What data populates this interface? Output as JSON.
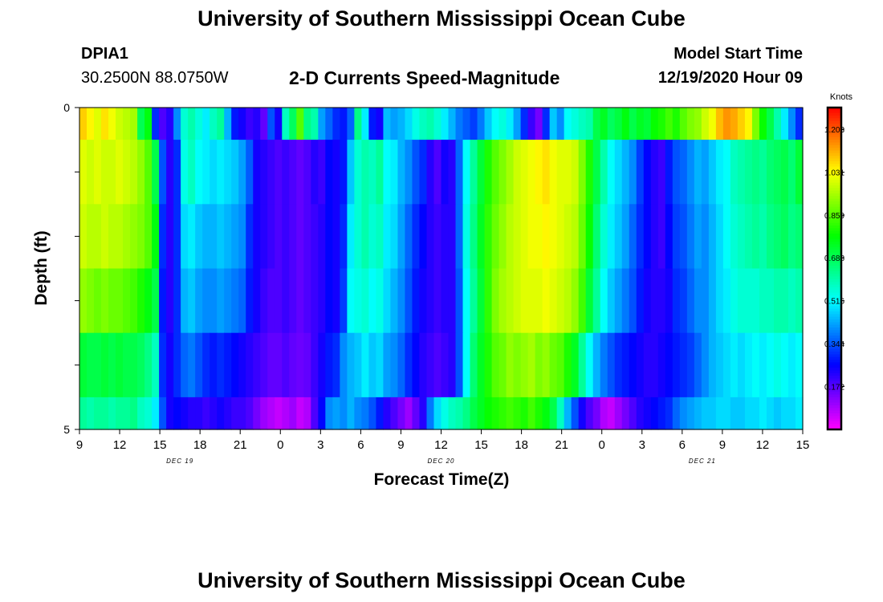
{
  "header": {
    "title": "University of Southern Mississippi Ocean Cube",
    "station_id": "DPIA1",
    "coordinates": "30.2500N 88.0750W",
    "subtitle": "2-D Currents Speed-Magnitude",
    "model_start_label": "Model Start Time",
    "model_start_value": "12/19/2020 Hour 09"
  },
  "footer": {
    "title": "University of Southern Mississippi Ocean Cube"
  },
  "chart_data": {
    "type": "heatmap",
    "xlabel": "Forecast Time(Z)",
    "ylabel": "Depth (ft)",
    "x_tick_labels": [
      "9",
      "12",
      "15",
      "18",
      "21",
      "0",
      "3",
      "6",
      "9",
      "12",
      "15",
      "18",
      "21",
      "0",
      "3",
      "6",
      "9",
      "12",
      "15"
    ],
    "x_tick_hours": [
      0,
      3,
      6,
      9,
      12,
      15,
      18,
      21,
      24,
      27,
      30,
      33,
      36,
      39,
      42,
      45,
      48,
      51,
      54
    ],
    "date_labels": [
      {
        "text": "DEC 19",
        "hour": 7.5
      },
      {
        "text": "DEC 20",
        "hour": 27
      },
      {
        "text": "DEC 21",
        "hour": 46.5
      }
    ],
    "x_range_hours": [
      0,
      54
    ],
    "y_range": [
      0,
      5
    ],
    "y_tick_labels": [
      "0",
      "5"
    ],
    "colorbar": {
      "unit": "Knots",
      "min": 0.0,
      "max": 1.29,
      "tick_values": [
        1.203,
        1.031,
        0.859,
        0.688,
        0.516,
        0.344,
        0.172
      ],
      "tick_labels": [
        "1.203",
        "1.031",
        "0.859",
        "0.688",
        "0.516",
        "0.344",
        "0.172"
      ]
    },
    "depth_bands": [
      {
        "depth_from": 0,
        "depth_to": 0.5,
        "values": [
          1.08,
          1.04,
          1.0,
          1.06,
          1.02,
          0.98,
          0.96,
          0.94,
          0.69,
          0.76,
          0.3,
          0.18,
          0.22,
          0.4,
          0.56,
          0.6,
          0.55,
          0.5,
          0.58,
          0.62,
          0.44,
          0.28,
          0.24,
          0.2,
          0.22,
          0.16,
          0.34,
          0.24,
          0.58,
          0.68,
          0.86,
          0.64,
          0.6,
          0.42,
          0.36,
          0.3,
          0.28,
          0.36,
          0.64,
          0.5,
          0.28,
          0.24,
          0.45,
          0.42,
          0.44,
          0.48,
          0.54,
          0.58,
          0.6,
          0.56,
          0.5,
          0.44,
          0.38,
          0.35,
          0.32,
          0.38,
          0.46,
          0.52,
          0.55,
          0.5,
          0.42,
          0.3,
          0.2,
          0.14,
          0.3,
          0.46,
          0.4,
          0.52,
          0.55,
          0.58,
          0.6,
          0.7,
          0.74,
          0.68,
          0.71,
          0.76,
          0.7,
          0.74,
          0.72,
          0.78,
          0.8,
          0.84,
          0.8,
          0.86,
          0.9,
          0.92,
          0.98,
          1.02,
          1.1,
          1.14,
          1.12,
          1.08,
          1.04,
          0.9,
          0.78,
          0.7,
          0.6,
          0.5,
          0.4,
          0.3
        ]
      },
      {
        "depth_from": 0.5,
        "depth_to": 1.5,
        "values": [
          1.0,
          0.98,
          1.0,
          0.98,
          0.98,
          1.0,
          0.98,
          0.96,
          0.92,
          0.86,
          0.7,
          0.34,
          0.22,
          0.3,
          0.54,
          0.58,
          0.52,
          0.5,
          0.48,
          0.5,
          0.48,
          0.46,
          0.42,
          0.35,
          0.24,
          0.22,
          0.2,
          0.18,
          0.2,
          0.18,
          0.16,
          0.18,
          0.22,
          0.2,
          0.26,
          0.24,
          0.28,
          0.46,
          0.56,
          0.6,
          0.58,
          0.62,
          0.52,
          0.5,
          0.44,
          0.4,
          0.34,
          0.3,
          0.22,
          0.18,
          0.24,
          0.22,
          0.36,
          0.52,
          0.62,
          0.72,
          0.8,
          0.86,
          0.9,
          0.94,
          0.98,
          1.0,
          1.02,
          1.04,
          1.06,
          1.02,
          1.0,
          1.0,
          0.98,
          0.9,
          0.8,
          0.7,
          0.6,
          0.52,
          0.48,
          0.44,
          0.4,
          0.32,
          0.26,
          0.22,
          0.2,
          0.28,
          0.34,
          0.36,
          0.4,
          0.44,
          0.42,
          0.46,
          0.5,
          0.52,
          0.58,
          0.6,
          0.62,
          0.64,
          0.62,
          0.66,
          0.68,
          0.7,
          0.66,
          0.72
        ]
      },
      {
        "depth_from": 1.5,
        "depth_to": 2.5,
        "values": [
          0.98,
          0.96,
          0.96,
          0.98,
          0.96,
          0.96,
          0.94,
          0.92,
          0.9,
          0.86,
          0.76,
          0.3,
          0.22,
          0.3,
          0.48,
          0.5,
          0.46,
          0.44,
          0.44,
          0.46,
          0.44,
          0.42,
          0.4,
          0.3,
          0.24,
          0.22,
          0.2,
          0.18,
          0.2,
          0.18,
          0.16,
          0.18,
          0.2,
          0.22,
          0.26,
          0.24,
          0.3,
          0.5,
          0.56,
          0.6,
          0.56,
          0.58,
          0.5,
          0.48,
          0.42,
          0.36,
          0.3,
          0.26,
          0.22,
          0.2,
          0.22,
          0.22,
          0.36,
          0.54,
          0.64,
          0.74,
          0.82,
          0.88,
          0.92,
          0.96,
          0.98,
          1.0,
          1.02,
          1.02,
          1.04,
          1.02,
          1.0,
          0.98,
          0.96,
          0.88,
          0.78,
          0.66,
          0.56,
          0.5,
          0.46,
          0.42,
          0.36,
          0.3,
          0.26,
          0.22,
          0.2,
          0.26,
          0.32,
          0.34,
          0.38,
          0.42,
          0.4,
          0.44,
          0.48,
          0.52,
          0.56,
          0.58,
          0.6,
          0.62,
          0.6,
          0.64,
          0.66,
          0.68,
          0.64,
          0.66
        ]
      },
      {
        "depth_from": 2.5,
        "depth_to": 3.5,
        "values": [
          0.92,
          0.9,
          0.88,
          0.9,
          0.88,
          0.88,
          0.86,
          0.84,
          0.8,
          0.76,
          0.7,
          0.28,
          0.22,
          0.3,
          0.44,
          0.46,
          0.42,
          0.4,
          0.4,
          0.42,
          0.4,
          0.38,
          0.36,
          0.28,
          0.24,
          0.2,
          0.18,
          0.18,
          0.2,
          0.18,
          0.16,
          0.18,
          0.2,
          0.22,
          0.26,
          0.24,
          0.32,
          0.52,
          0.54,
          0.56,
          0.52,
          0.54,
          0.48,
          0.44,
          0.4,
          0.34,
          0.28,
          0.24,
          0.22,
          0.2,
          0.22,
          0.22,
          0.34,
          0.52,
          0.62,
          0.72,
          0.82,
          0.9,
          0.94,
          0.96,
          0.98,
          1.0,
          1.0,
          1.0,
          1.02,
          1.0,
          0.98,
          0.96,
          0.92,
          0.84,
          0.72,
          0.62,
          0.52,
          0.46,
          0.42,
          0.38,
          0.34,
          0.28,
          0.24,
          0.22,
          0.22,
          0.24,
          0.3,
          0.32,
          0.36,
          0.4,
          0.4,
          0.44,
          0.48,
          0.5,
          0.54,
          0.56,
          0.56,
          0.56,
          0.58,
          0.58,
          0.6,
          0.6,
          0.58,
          0.6
        ]
      },
      {
        "depth_from": 3.5,
        "depth_to": 4.5,
        "values": [
          0.72,
          0.7,
          0.7,
          0.72,
          0.7,
          0.72,
          0.7,
          0.7,
          0.68,
          0.64,
          0.58,
          0.3,
          0.24,
          0.3,
          0.36,
          0.38,
          0.34,
          0.3,
          0.28,
          0.3,
          0.28,
          0.26,
          0.24,
          0.22,
          0.2,
          0.18,
          0.16,
          0.16,
          0.18,
          0.16,
          0.15,
          0.16,
          0.2,
          0.24,
          0.28,
          0.3,
          0.4,
          0.44,
          0.46,
          0.5,
          0.46,
          0.48,
          0.42,
          0.4,
          0.36,
          0.3,
          0.26,
          0.22,
          0.2,
          0.18,
          0.2,
          0.22,
          0.34,
          0.52,
          0.66,
          0.74,
          0.8,
          0.86,
          0.88,
          0.92,
          0.9,
          0.92,
          0.94,
          0.9,
          0.92,
          0.88,
          0.86,
          0.8,
          0.74,
          0.62,
          0.52,
          0.44,
          0.38,
          0.34,
          0.3,
          0.28,
          0.26,
          0.24,
          0.22,
          0.22,
          0.24,
          0.26,
          0.28,
          0.3,
          0.32,
          0.36,
          0.4,
          0.44,
          0.46,
          0.48,
          0.5,
          0.48,
          0.5,
          0.52,
          0.5,
          0.52,
          0.54,
          0.52,
          0.5,
          0.52
        ]
      },
      {
        "depth_from": 4.5,
        "depth_to": 5,
        "values": [
          0.62,
          0.6,
          0.62,
          0.62,
          0.6,
          0.62,
          0.62,
          0.64,
          0.58,
          0.56,
          0.5,
          0.34,
          0.24,
          0.26,
          0.24,
          0.22,
          0.22,
          0.2,
          0.22,
          0.24,
          0.22,
          0.2,
          0.2,
          0.18,
          0.14,
          0.1,
          0.08,
          0.06,
          0.08,
          0.1,
          0.06,
          0.08,
          0.18,
          0.26,
          0.4,
          0.42,
          0.4,
          0.44,
          0.4,
          0.38,
          0.34,
          0.28,
          0.22,
          0.18,
          0.14,
          0.1,
          0.16,
          0.22,
          0.38,
          0.48,
          0.54,
          0.58,
          0.6,
          0.64,
          0.7,
          0.74,
          0.78,
          0.8,
          0.82,
          0.84,
          0.82,
          0.8,
          0.84,
          0.8,
          0.76,
          0.7,
          0.58,
          0.44,
          0.34,
          0.24,
          0.18,
          0.14,
          0.08,
          0.06,
          0.1,
          0.14,
          0.18,
          0.22,
          0.24,
          0.26,
          0.28,
          0.3,
          0.36,
          0.4,
          0.42,
          0.44,
          0.46,
          0.46,
          0.48,
          0.48,
          0.46,
          0.46,
          0.48,
          0.48,
          0.5,
          0.48,
          0.46,
          0.48,
          0.48,
          0.5
        ]
      }
    ]
  }
}
